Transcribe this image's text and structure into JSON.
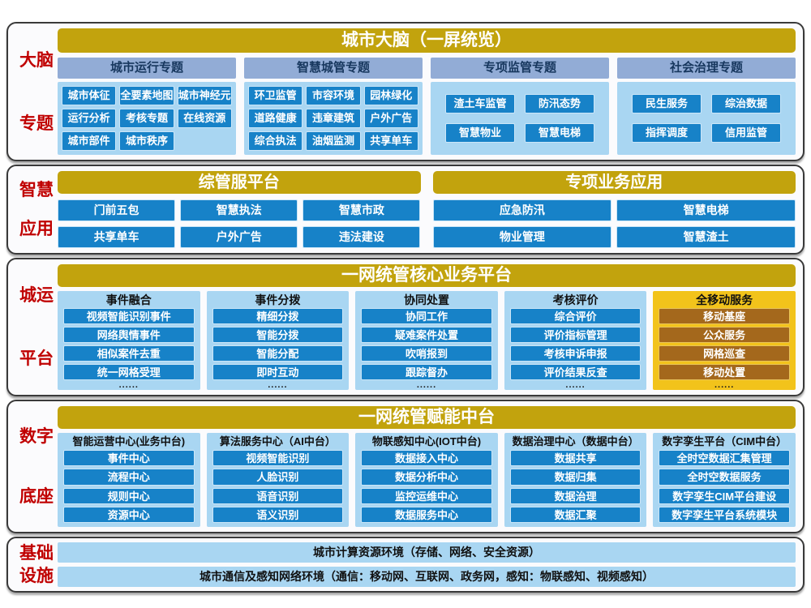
{
  "colors": {
    "gold_header": "#c2a30d",
    "theme_header": "#92acd6",
    "light_blue_panel": "#a9d6f2",
    "blue_button": "#1782c8",
    "mobile_panel_yellow": "#f2c31b",
    "mobile_button_brown": "#a4681c",
    "side_label_red": "#c00000",
    "header_text_navy": "#17375e"
  },
  "section1": {
    "side_label": [
      "大脑",
      "专题"
    ],
    "title": "城市大脑（一屏统览）",
    "groups": [
      {
        "title": "城市运行专题",
        "cols": 3,
        "items": [
          "城市体征",
          "全要素地图",
          "城市神经元",
          "运行分析",
          "考核专题",
          "在线资源",
          "城市部件",
          "城市秩序"
        ]
      },
      {
        "title": "智慧城管专题",
        "cols": 3,
        "items": [
          "环卫监管",
          "市容环境",
          "园林绿化",
          "道路健康",
          "违章建筑",
          "户外广告",
          "综合执法",
          "油烟监测",
          "共享单车"
        ]
      },
      {
        "title": "专项监管专题",
        "cols": 2,
        "items": [
          "渣土车监管",
          "防汛态势",
          "智慧物业",
          "智慧电梯"
        ]
      },
      {
        "title": "社会治理专题",
        "cols": 2,
        "items": [
          "民生服务",
          "综治数据",
          "指挥调度",
          "信用监管"
        ]
      }
    ]
  },
  "section2": {
    "side_label": [
      "智慧",
      "应用"
    ],
    "panels": [
      {
        "title": "综管服平台",
        "cols": 3,
        "items": [
          "门前五包",
          "智慧执法",
          "智慧市政",
          "共享单车",
          "户外广告",
          "违法建设"
        ]
      },
      {
        "title": "专项业务应用",
        "cols": 2,
        "items": [
          "应急防汛",
          "智慧电梯",
          "物业管理",
          "智慧渣土"
        ]
      }
    ]
  },
  "section3": {
    "side_label": [
      "城运",
      "平台"
    ],
    "title": "一网统管核心业务平台",
    "columns": [
      {
        "title": "事件融合",
        "highlight": false,
        "dots": "......",
        "items": [
          "视频智能识别事件",
          "网络舆情事件",
          "相似案件去重",
          "统一网格受理"
        ]
      },
      {
        "title": "事件分拨",
        "highlight": false,
        "dots": "......",
        "items": [
          "精细分拨",
          "智能分拨",
          "智能分配",
          "即时互动"
        ]
      },
      {
        "title": "协同处置",
        "highlight": false,
        "dots": "......",
        "items": [
          "协同工作",
          "疑难案件处置",
          "吹哨报到",
          "跟踪督办"
        ]
      },
      {
        "title": "考核评价",
        "highlight": false,
        "dots": "......",
        "items": [
          "综合评价",
          "评价指标管理",
          "考核申诉申报",
          "评价结果反查"
        ]
      },
      {
        "title": "全移动服务",
        "highlight": true,
        "dots": "......",
        "items": [
          "移动基座",
          "公众服务",
          "网格巡查",
          "移动处置"
        ]
      }
    ]
  },
  "section4": {
    "side_label": [
      "数字",
      "底座"
    ],
    "title": "一网统管赋能中台",
    "columns": [
      {
        "title": "智能运营中心(业务中台)",
        "items": [
          "事件中心",
          "流程中心",
          "规则中心",
          "资源中心"
        ]
      },
      {
        "title": "算法服务中心（AI中台）",
        "items": [
          "视频智能识别",
          "人脸识别",
          "语音识别",
          "语义识别"
        ]
      },
      {
        "title": "物联感知中心(IOT中台)",
        "items": [
          "数据接入中心",
          "数据分析中心",
          "监控运维中心",
          "数据服务中心"
        ]
      },
      {
        "title": "数据治理中心（数据中台）",
        "items": [
          "数据共享",
          "数据归集",
          "数据治理",
          "数据汇聚"
        ]
      },
      {
        "title": "数字孪生平台（CIM中台）",
        "items": [
          "全时空数据汇集管理",
          "全时空数据服务",
          "数字孪生CIM平台建设",
          "数字孪生平台系统模块"
        ]
      }
    ]
  },
  "section5": {
    "side_label": [
      "基础",
      "设施"
    ],
    "rows": [
      "城市计算资源环境（存储、网络、安全资源）",
      "城市通信及感知网络环境（通信：移动网、互联网、政务网，感知：物联感知、视频感知）"
    ]
  }
}
